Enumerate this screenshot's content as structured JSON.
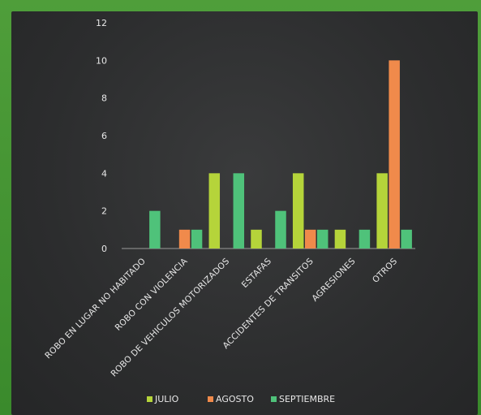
{
  "chart_data": {
    "type": "bar",
    "title": "",
    "xlabel": "",
    "ylabel": "",
    "ylim": [
      0,
      12
    ],
    "yticks": [
      0,
      2,
      4,
      6,
      8,
      10,
      12
    ],
    "grid": false,
    "legend_position": "bottom",
    "categories": [
      "ROBO EN LUGAR NO HABITADO",
      "ROBO CON VIOLENCIA",
      "ROBO DE VEHICULOS MOTORIZADOS",
      "ESTAFAS",
      "ACCIDENTES DE TRANSITOS",
      "AGRESIONES",
      "OTROS"
    ],
    "series": [
      {
        "name": "JULIO",
        "color": "#b5d43a",
        "values": [
          0,
          0,
          4,
          1,
          4,
          1,
          4
        ]
      },
      {
        "name": "AGOSTO",
        "color": "#f08a4b",
        "values": [
          0,
          1,
          0,
          0,
          1,
          0,
          10
        ]
      },
      {
        "name": "SEPTIEMBRE",
        "color": "#4fc27a",
        "values": [
          2,
          1,
          4,
          2,
          1,
          1,
          1
        ]
      }
    ]
  }
}
